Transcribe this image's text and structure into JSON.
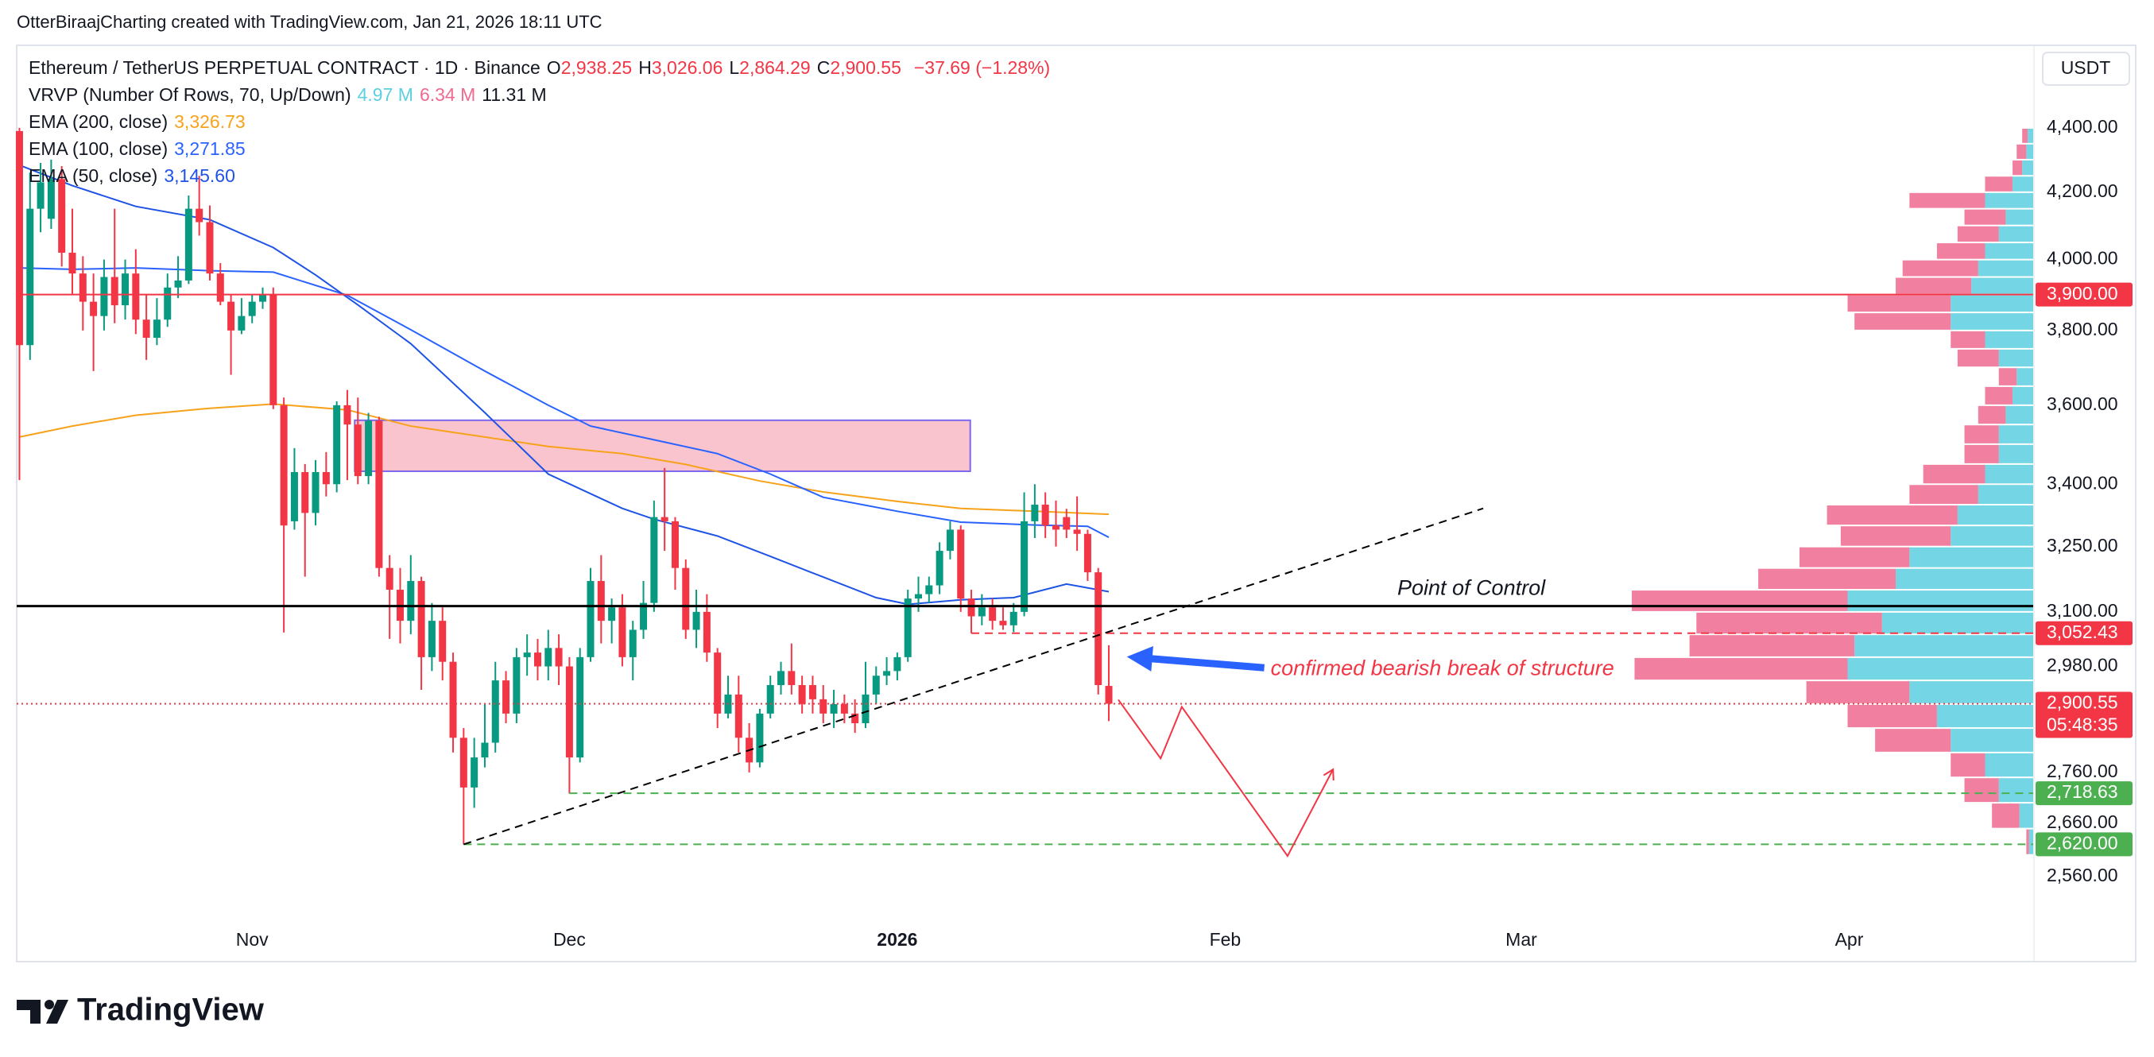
{
  "header": "OtterBiraajCharting created with TradingView.com, Jan 21, 2026 18:11 UTC",
  "footer": {
    "brand": "TradingView"
  },
  "chart_data": {
    "type": "candlestick",
    "currency": "USDT",
    "log": true,
    "grid": false,
    "xlim": [
      -0.26,
      190.4
    ],
    "ylim": [
      2477,
      4671
    ],
    "xticks": [
      {
        "value": 22,
        "label": "Nov"
      },
      {
        "value": 52,
        "label": "Dec"
      },
      {
        "value": 83,
        "label": "2026",
        "bold": true
      },
      {
        "value": 114,
        "label": "Feb"
      },
      {
        "value": 142,
        "label": "Mar"
      },
      {
        "value": 173,
        "label": "Apr"
      }
    ],
    "yticks": [
      {
        "value": 4400,
        "label": "4,400.00"
      },
      {
        "value": 4200,
        "label": "4,200.00"
      },
      {
        "value": 4000,
        "label": "4,000.00"
      },
      {
        "value": 3800,
        "label": "3,800.00"
      },
      {
        "value": 3600,
        "label": "3,600.00"
      },
      {
        "value": 3400,
        "label": "3,400.00"
      },
      {
        "value": 3250,
        "label": "3,250.00"
      },
      {
        "value": 3100,
        "label": "3,100.00"
      },
      {
        "value": 2980,
        "label": "2,980.00"
      },
      {
        "value": 2760,
        "label": "2,760.00"
      },
      {
        "value": 2660,
        "label": "2,660.00"
      },
      {
        "value": 2560,
        "label": "2,560.00"
      }
    ],
    "candles": {
      "name": "Ethereum / TetherUS PERPETUAL CONTRACT · 1D · Binance",
      "up_color": "#089981",
      "down_color": "#f23645",
      "open": [
        4390,
        3760,
        4150,
        4120,
        4240,
        4020,
        3960,
        3880,
        3840,
        3950,
        3870,
        3960,
        3830,
        3780,
        3830,
        3920,
        3940,
        4150,
        4110,
        3960,
        3880,
        3800,
        3840,
        3880,
        3900,
        3600,
        3310,
        3430,
        3330,
        3430,
        3400,
        3600,
        3550,
        3420,
        3560,
        3200,
        3150,
        3080,
        3170,
        3000,
        3080,
        2990,
        2830,
        2730,
        2790,
        2820,
        2950,
        2880,
        3000,
        3010,
        2980,
        3020,
        2980,
        2790,
        3000,
        3170,
        3080,
        3110,
        3000,
        3060,
        3120,
        3320,
        3310,
        3200,
        3060,
        3100,
        3010,
        2880,
        2920,
        2830,
        2780,
        2880,
        2940,
        2970,
        2940,
        2940,
        2910,
        2880,
        2900,
        2880,
        2860,
        2920,
        2960,
        2970,
        3000,
        3130,
        3140,
        3160,
        3240,
        3290,
        3130,
        3090,
        3110,
        3080,
        3070,
        3100,
        3310,
        3350,
        3300,
        3320,
        3290,
        3280,
        3190,
        2938.25
      ],
      "high": [
        4400,
        4260,
        4290,
        4300,
        4280,
        4150,
        4010,
        3960,
        4000,
        4150,
        4000,
        4030,
        3900,
        3890,
        3960,
        4010,
        4190,
        4250,
        4160,
        3990,
        3900,
        3890,
        3900,
        3920,
        3920,
        3620,
        3490,
        3450,
        3460,
        3480,
        3610,
        3640,
        3620,
        3580,
        3570,
        3230,
        3200,
        3230,
        3180,
        3120,
        3110,
        3010,
        2850,
        2830,
        2900,
        2990,
        2970,
        3020,
        3050,
        3040,
        3060,
        3050,
        3000,
        3020,
        3200,
        3230,
        3130,
        3140,
        3080,
        3170,
        3360,
        3440,
        3320,
        3220,
        3150,
        3140,
        3020,
        2960,
        2960,
        2860,
        2890,
        2960,
        2990,
        3030,
        2960,
        2960,
        2940,
        2930,
        2920,
        2910,
        2990,
        2980,
        3000,
        3010,
        3150,
        3180,
        3180,
        3260,
        3310,
        3300,
        3150,
        3140,
        3130,
        3110,
        3120,
        3380,
        3400,
        3380,
        3360,
        3340,
        3370,
        3290,
        3200,
        3026.06
      ],
      "low": [
        3410,
        3720,
        4080,
        4090,
        3980,
        3900,
        3800,
        3690,
        3800,
        3820,
        3830,
        3790,
        3720,
        3760,
        3810,
        3890,
        3930,
        4070,
        3940,
        3870,
        3680,
        3790,
        3820,
        3860,
        3590,
        3054,
        3290,
        3180,
        3300,
        3370,
        3380,
        3410,
        3400,
        3400,
        3180,
        3040,
        3030,
        3050,
        2930,
        2970,
        2950,
        2800,
        2620,
        2690,
        2770,
        2800,
        2860,
        2860,
        2960,
        2950,
        2950,
        2940,
        2718,
        2780,
        2990,
        3030,
        3030,
        2980,
        2950,
        3040,
        3100,
        3240,
        3150,
        3040,
        3020,
        2990,
        2850,
        2870,
        2800,
        2760,
        2770,
        2870,
        2920,
        2920,
        2880,
        2880,
        2860,
        2850,
        2860,
        2840,
        2850,
        2900,
        2940,
        2950,
        2990,
        3100,
        3120,
        3140,
        3220,
        3100,
        3052.43,
        3070,
        3060,
        3060,
        3055,
        3090,
        3270,
        3270,
        3250,
        3270,
        3240,
        3170,
        2920,
        2864.29
      ],
      "close": [
        3760,
        4150,
        4230,
        4240,
        4020,
        3960,
        3880,
        3840,
        3950,
        3870,
        3960,
        3830,
        3780,
        3830,
        3920,
        3940,
        4150,
        4110,
        3960,
        3880,
        3800,
        3840,
        3880,
        3900,
        3600,
        3300,
        3430,
        3330,
        3430,
        3400,
        3600,
        3550,
        3420,
        3560,
        3200,
        3150,
        3080,
        3170,
        3000,
        3080,
        2990,
        2830,
        2730,
        2790,
        2820,
        2950,
        2880,
        3000,
        3010,
        2980,
        3020,
        2980,
        2790,
        3000,
        3170,
        3080,
        3110,
        3000,
        3060,
        3120,
        3320,
        3310,
        3200,
        3060,
        3100,
        3010,
        2880,
        2920,
        2830,
        2780,
        2880,
        2940,
        2970,
        2940,
        2900,
        2910,
        2880,
        2900,
        2880,
        2860,
        2920,
        2960,
        2970,
        3000,
        3130,
        3140,
        3160,
        3240,
        3290,
        3130,
        3090,
        3110,
        3080,
        3070,
        3100,
        3310,
        3350,
        3300,
        3290,
        3290,
        3280,
        3190,
        2940,
        2900.55
      ]
    },
    "ohlc_legend": [
      {
        "key": "O",
        "value": "2,938.25"
      },
      {
        "key": "H",
        "value": "3,026.06"
      },
      {
        "key": "L",
        "value": "2,864.29"
      },
      {
        "key": "C",
        "value": "2,900.55"
      }
    ],
    "change_label": "−37.69 (−1.28%)",
    "series": [
      {
        "name": "EMA (200, close)",
        "color": "#f7a21b",
        "last_label": "3,326.73",
        "x": [
          0,
          5,
          11,
          18,
          24,
          31,
          37,
          44,
          50,
          57,
          63,
          70,
          76,
          83,
          89,
          96,
          103
        ],
        "values": [
          3518,
          3546,
          3574,
          3592,
          3603,
          3588,
          3546,
          3518,
          3494,
          3476,
          3449,
          3408,
          3381,
          3358,
          3341,
          3334,
          3326.73
        ]
      },
      {
        "name": "EMA (100, close)",
        "color": "#2962ff",
        "last_label": "3,271.85",
        "x": [
          0,
          5,
          11,
          18,
          24,
          31,
          37,
          44,
          50,
          54,
          60,
          66,
          71,
          76,
          83,
          89,
          96,
          101,
          103
        ],
        "values": [
          3976,
          3972,
          3976,
          3968,
          3964,
          3898,
          3802,
          3690,
          3600,
          3546,
          3511,
          3476,
          3425,
          3368,
          3334,
          3308,
          3301,
          3298,
          3271.85
        ]
      },
      {
        "name": "EMA (50, close)",
        "color": "#1e53e5",
        "last_label": "3,145.60",
        "x": [
          0,
          5,
          11,
          18,
          24,
          28,
          32,
          37,
          44,
          50,
          57,
          60,
          66,
          71,
          76,
          81,
          84,
          89,
          94,
          99,
          103
        ],
        "values": [
          4283,
          4220,
          4157,
          4117,
          4035,
          3956,
          3871,
          3764,
          3581,
          3425,
          3341,
          3315,
          3275,
          3227,
          3179,
          3132,
          3117,
          3127,
          3132,
          3163,
          3145.6
        ]
      }
    ],
    "vrvp": {
      "name": "VRVP (Number Of Rows, 70, Up/Down)",
      "up_label": "4.97 M",
      "down_label": "6.34 M",
      "total_label": "11.31 M",
      "up_color": "#5ccfe0",
      "down_color": "#ee6a8f",
      "prices": [
        2625,
        2675,
        2725,
        2775,
        2825,
        2875,
        2925,
        2975,
        3025,
        3075,
        3125,
        3175,
        3225,
        3275,
        3325,
        3375,
        3425,
        3475,
        3525,
        3575,
        3625,
        3675,
        3725,
        3775,
        3825,
        3875,
        3925,
        3975,
        4025,
        4075,
        4125,
        4175,
        4225,
        4275,
        4325,
        4375
      ],
      "up": [
        3,
        10,
        25,
        35,
        60,
        70,
        90,
        135,
        130,
        110,
        135,
        100,
        90,
        60,
        55,
        40,
        35,
        25,
        25,
        20,
        15,
        12,
        25,
        35,
        60,
        60,
        45,
        40,
        35,
        25,
        20,
        35,
        15,
        8,
        5,
        4
      ],
      "down": [
        2,
        20,
        25,
        25,
        55,
        65,
        75,
        155,
        120,
        135,
        157,
        100,
        80,
        80,
        95,
        50,
        45,
        25,
        25,
        20,
        20,
        13,
        30,
        25,
        70,
        75,
        55,
        55,
        35,
        30,
        30,
        55,
        20,
        7,
        7,
        4
      ]
    },
    "levels": [
      {
        "value": 3900,
        "label": "3,900.00",
        "color": "#f23645",
        "dash": "solid"
      },
      {
        "value": 3113,
        "text": "Point of Control",
        "color": "#000000",
        "dash": "solid",
        "width": 3
      },
      {
        "value": 3052.43,
        "label": "3,052.43",
        "color": "#f23645",
        "dash": "dashed",
        "from": 90
      },
      {
        "value": 2900.55,
        "label": "2,900.55",
        "countdown": "05:48:35",
        "color": "#f23645",
        "dash": "dotted"
      },
      {
        "value": 2718.63,
        "label": "2,718.63",
        "color": "#4caf50",
        "dash": "dashed",
        "from": 52
      },
      {
        "value": 2620,
        "label": "2,620.00",
        "color": "#4caf50",
        "dash": "dashed",
        "from": 42
      }
    ],
    "zone": {
      "x": [
        31.7,
        89.9
      ],
      "y": [
        3432,
        3561
      ],
      "color": "#f8a5b4",
      "border": "#7b68ee"
    },
    "trendline": {
      "x": [
        42,
        138.4
      ],
      "y": [
        2620,
        3341
      ],
      "color": "#000000"
    },
    "projection": {
      "x": [
        103.9,
        107.9,
        109.9,
        119.9,
        124.2
      ],
      "y": [
        2909,
        2788,
        2894,
        2598,
        2766
      ],
      "color": "#f23645"
    },
    "arrow": {
      "text": "confirmed bearish break of structure",
      "x": [
        117.7,
        104.7
      ],
      "y": [
        2977,
        3001
      ],
      "color": "#2962ff",
      "text_color": "#f23645"
    }
  }
}
